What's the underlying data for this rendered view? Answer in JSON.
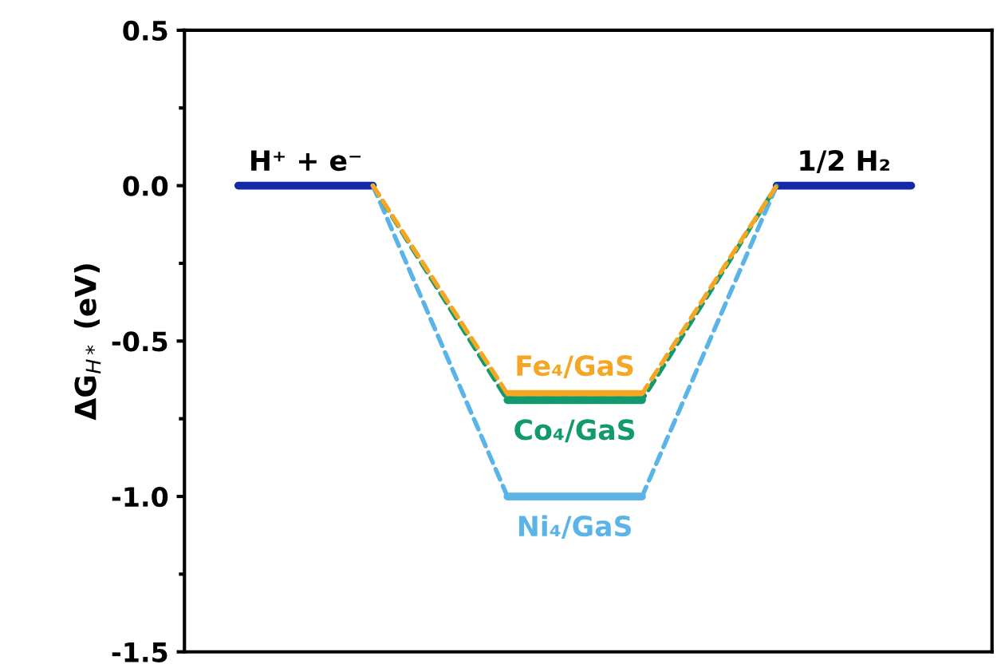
{
  "chart_data": {
    "type": "line",
    "ylabel": "ΔG$_{H*}$ (eV)",
    "categories": [
      null,
      null,
      null,
      null,
      null,
      null
    ],
    "series": [
      {
        "color": "#1428a8",
        "values": [
          0,
          0,
          null,
          null,
          0,
          0
        ],
        "line_style": "solid"
      },
      {
        "name": "Fe₄/GaS",
        "color": "#f5a623",
        "values": [
          null,
          0,
          -0.67,
          -0.67,
          0,
          null
        ],
        "line_style": "dashed"
      },
      {
        "name": "Co₄/GaS",
        "color": "#119a6e",
        "values": [
          null,
          0,
          -0.69,
          -0.69,
          0,
          null
        ],
        "line_style": "dashed"
      },
      {
        "name": "Ni₄/GaS",
        "color": "#5ab4e8",
        "values": [
          null,
          0,
          -1.0,
          -1.0,
          0,
          null
        ],
        "line_style": "dashed"
      }
    ],
    "annotations": [
      "H⁺ + e⁻",
      "1/2 H₂"
    ],
    "ylim": [
      -1.5,
      0.5
    ],
    "yticks": [
      {
        "value": -1.5,
        "label": "-1.5"
      },
      {
        "value": -1.25,
        "label": null
      },
      {
        "value": -1.0,
        "label": "-1.0"
      },
      {
        "value": -0.75,
        "label": null
      },
      {
        "value": -0.5,
        "label": "-0.5"
      },
      {
        "value": -0.25,
        "label": null
      },
      {
        "value": 0.0,
        "label": "0.0"
      },
      {
        "value": 0.25,
        "label": null
      },
      {
        "value": 0.5,
        "label": "0.5"
      }
    ],
    "tick_labels": "y",
    "grid": false,
    "legend": "center"
  }
}
